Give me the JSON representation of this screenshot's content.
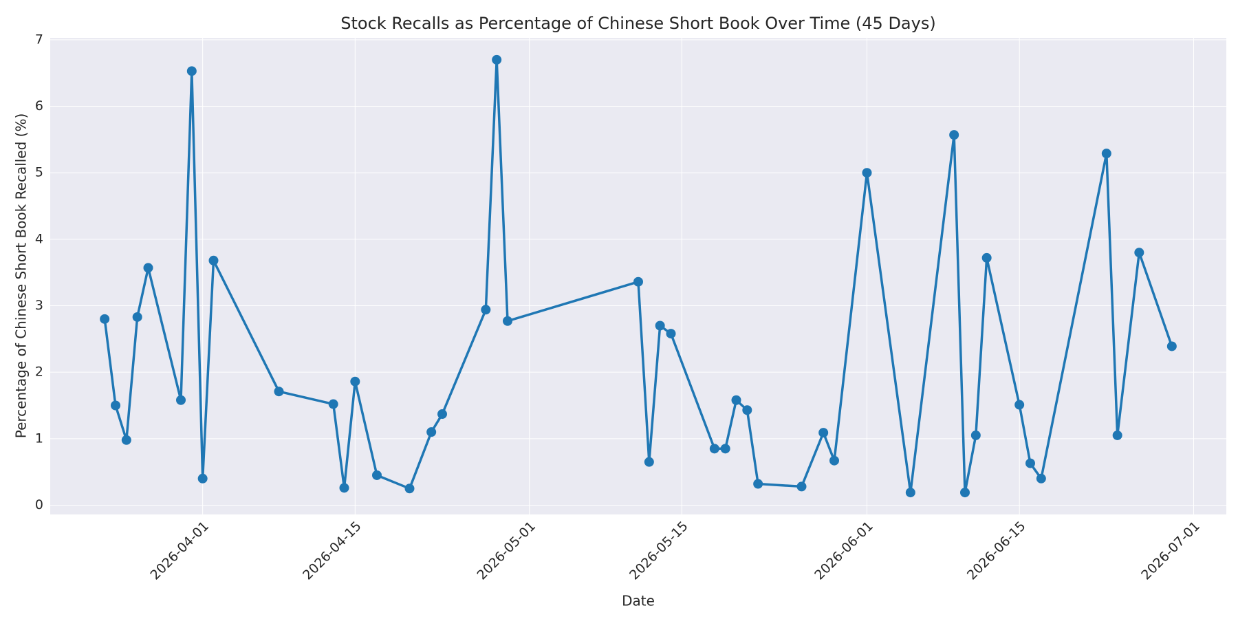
{
  "chart_data": {
    "type": "line",
    "title": "Stock Recalls as Percentage of Chinese Short Book Over Time (45 Days)",
    "xlabel": "Date",
    "ylabel": "Percentage of Chinese Short Book Recalled (%)",
    "x": [
      "2026-03-23",
      "2026-03-24",
      "2026-03-25",
      "2026-03-26",
      "2026-03-27",
      "2026-03-30",
      "2026-03-31",
      "2026-04-01",
      "2026-04-02",
      "2026-04-08",
      "2026-04-13",
      "2026-04-14",
      "2026-04-15",
      "2026-04-17",
      "2026-04-20",
      "2026-04-22",
      "2026-04-23",
      "2026-04-27",
      "2026-04-28",
      "2026-04-29",
      "2026-05-11",
      "2026-05-12",
      "2026-05-13",
      "2026-05-14",
      "2026-05-18",
      "2026-05-19",
      "2026-05-20",
      "2026-05-21",
      "2026-05-22",
      "2026-05-26",
      "2026-05-28",
      "2026-05-29",
      "2026-06-01",
      "2026-06-05",
      "2026-06-09",
      "2026-06-10",
      "2026-06-11",
      "2026-06-12",
      "2026-06-15",
      "2026-06-16",
      "2026-06-17",
      "2026-06-23",
      "2026-06-24",
      "2026-06-26",
      "2026-06-29"
    ],
    "values": [
      2.8,
      1.5,
      0.98,
      2.83,
      3.57,
      1.58,
      6.53,
      0.4,
      3.68,
      1.71,
      1.52,
      0.26,
      1.86,
      0.45,
      0.25,
      1.1,
      1.37,
      2.94,
      6.7,
      2.77,
      3.36,
      0.65,
      2.7,
      2.58,
      0.85,
      0.85,
      1.58,
      1.43,
      0.32,
      0.28,
      1.09,
      0.67,
      5.0,
      0.19,
      5.57,
      0.19,
      1.05,
      3.72,
      1.51,
      0.63,
      0.4,
      5.29,
      1.05,
      3.8,
      2.39
    ],
    "color": "#1f77b4",
    "xlim": [
      "2026-03-18",
      "2026-07-04"
    ],
    "xticks": [
      "2026-04-01",
      "2026-04-15",
      "2026-05-01",
      "2026-05-15",
      "2026-06-01",
      "2026-06-15",
      "2026-07-01"
    ],
    "ylim": [
      -0.14,
      7.03
    ],
    "yticks": [
      0,
      1,
      2,
      3,
      4,
      5,
      6,
      7
    ],
    "grid": true
  }
}
